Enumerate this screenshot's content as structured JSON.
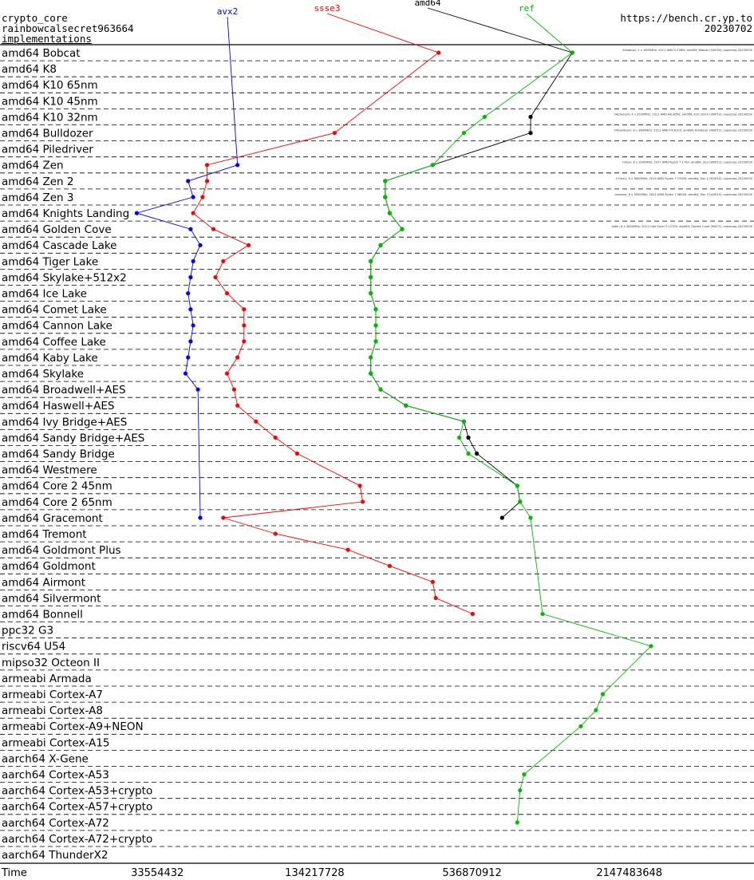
{
  "header": {
    "line1": "crypto_core",
    "line2": "rainbowcalsecret963664",
    "line3": "implementations",
    "url": "https://bench.cr.yp.to",
    "date": "20230702"
  },
  "chart_data": {
    "type": "line",
    "xlabel": "Time",
    "x_scale": "log2",
    "xlim": [
      8388608,
      6442450944
    ],
    "x_ticks": [
      {
        "value": 33554432,
        "label": "33554432"
      },
      {
        "value": 134217728,
        "label": "134217728"
      },
      {
        "value": 536870912,
        "label": "536870912"
      },
      {
        "value": 2147483648,
        "label": "2147483648"
      }
    ],
    "categories": [
      "amd64 Bobcat",
      "amd64 K8",
      "amd64 K10 65nm",
      "amd64 K10 45nm",
      "amd64 K10 32nm",
      "amd64 Bulldozer",
      "amd64 Piledriver",
      "amd64 Zen",
      "amd64 Zen 2",
      "amd64 Zen 3",
      "amd64 Knights Landing",
      "amd64 Golden Cove",
      "amd64 Cascade Lake",
      "amd64 Tiger Lake",
      "amd64 Skylake+512x2",
      "amd64 Ice Lake",
      "amd64 Comet Lake",
      "amd64 Cannon Lake",
      "amd64 Coffee Lake",
      "amd64 Kaby Lake",
      "amd64 Skylake",
      "amd64 Broadwell+AES",
      "amd64 Haswell+AES",
      "amd64 Ivy Bridge+AES",
      "amd64 Sandy Bridge+AES",
      "amd64 Sandy Bridge",
      "amd64 Westmere",
      "amd64 Core 2 45nm",
      "amd64 Core 2 65nm",
      "amd64 Gracemont",
      "amd64 Tremont",
      "amd64 Goldmont Plus",
      "amd64 Goldmont",
      "amd64 Airmont",
      "amd64 Silvermont",
      "amd64 Bonnell",
      "ppc32 G3",
      "riscv64 U54",
      "mipso32 Octeon II",
      "armeabi Armada",
      "armeabi Cortex-A7",
      "armeabi Cortex-A8",
      "armeabi Cortex-A9+NEON",
      "armeabi Cortex-A15",
      "aarch64 X-Gene",
      "aarch64 Cortex-A53",
      "aarch64 Cortex-A53+crypto",
      "aarch64 Cortex-A57+crypto",
      "aarch64 Cortex-A72",
      "aarch64 Cortex-A72+crypto",
      "aarch64 ThunderX2"
    ],
    "series": [
      {
        "name": "avx2",
        "color": "#0000ff",
        "values": [
          null,
          null,
          null,
          null,
          null,
          null,
          null,
          68000000,
          44000000,
          46000000,
          28000000,
          45000000,
          49000000,
          46000000,
          45000000,
          44000000,
          45000000,
          46000000,
          45000000,
          44000000,
          43000000,
          48000000,
          null,
          null,
          null,
          null,
          null,
          null,
          null,
          49000000,
          null,
          null,
          null,
          null,
          null,
          null,
          null,
          null,
          null,
          null,
          null,
          null,
          null,
          null,
          null,
          null,
          null,
          null,
          null,
          null,
          null
        ]
      },
      {
        "name": "ssse3",
        "color": "#ff0000",
        "values": [
          400000000,
          null,
          null,
          null,
          null,
          160000000,
          null,
          52000000,
          52000000,
          50000000,
          46000000,
          55000000,
          75000000,
          60000000,
          56000000,
          62000000,
          72000000,
          72000000,
          72000000,
          68000000,
          62000000,
          66000000,
          68000000,
          80000000,
          95000000,
          115000000,
          null,
          200000000,
          205000000,
          60000000,
          95000000,
          180000000,
          260000000,
          380000000,
          390000000,
          540000000,
          null,
          null,
          null,
          null,
          null,
          null,
          null,
          null,
          null,
          null,
          null,
          null,
          null,
          null,
          null
        ]
      },
      {
        "name": "amd64",
        "color": "#000000",
        "values": [
          1300000000,
          null,
          null,
          null,
          900000000,
          900000000,
          null,
          380000000,
          250000000,
          250000000,
          260000000,
          290000000,
          240000000,
          220000000,
          220000000,
          220000000,
          230000000,
          230000000,
          230000000,
          220000000,
          220000000,
          240000000,
          300000000,
          500000000,
          520000000,
          560000000,
          null,
          800000000,
          820000000,
          700000000,
          null,
          null,
          null,
          null,
          null,
          null,
          null,
          null,
          null,
          null,
          null,
          null,
          null,
          null,
          null,
          null,
          null,
          null,
          null,
          null,
          null
        ]
      },
      {
        "name": "ref",
        "color": "#00bb00",
        "values": [
          1300000000,
          null,
          null,
          null,
          600000000,
          500000000,
          null,
          380000000,
          250000000,
          250000000,
          260000000,
          290000000,
          240000000,
          220000000,
          220000000,
          220000000,
          230000000,
          230000000,
          230000000,
          220000000,
          220000000,
          240000000,
          300000000,
          500000000,
          480000000,
          520000000,
          null,
          800000000,
          820000000,
          900000000,
          null,
          null,
          null,
          null,
          null,
          1000000000,
          null,
          2600000000,
          null,
          null,
          1700000000,
          1600000000,
          1400000000,
          null,
          null,
          850000000,
          820000000,
          null,
          800000000,
          null,
          null
        ]
      }
    ]
  },
  "machines": [
    "h4bobcat; 2 x 1600MHz; 2011 AMD G-T56N; amd64; Bobcat (500f20); supercop-20230530",
    "",
    "",
    "",
    "h4phenom; 4 x 3200MHz; 2011 AMD A6-3650; amd64; K10 32nm (300f10); supercop-20230530",
    "h4bulldozer; 8 x 3600MHz; 2011 AMD FX-8150; amd64; Bulldozer (600f12); supercop-20230530",
    "",
    "h4zen; 8 x 3200MHz; 2017 AMD Ryzen 7 1700; amd64; Zen (800f11); supercop-20230530",
    "h7zen2; 8 x 3600MHz; 2019 AMD Ryzen 7 3700X; amd64; Zen 2 (870f10); supercop-20230530",
    "cezanne; 8 x 3900MHz; 2021 AMD Ryzen 7 5800X; amd64; Zen 3 (a20f10); supercop-20230530",
    "",
    "alder; 8 x 3600MHz; 2021 Intel Core i7-12700; amd64; Golden Cove (90672); supercop-20230530",
    "",
    "",
    "",
    "",
    "",
    "",
    "",
    "",
    "",
    "",
    "",
    "",
    "",
    "",
    "",
    "",
    "",
    "",
    "",
    "",
    "",
    "",
    "",
    "",
    "",
    "",
    "",
    "",
    "",
    "",
    "",
    "",
    "",
    "",
    "",
    "",
    "",
    "",
    ""
  ]
}
